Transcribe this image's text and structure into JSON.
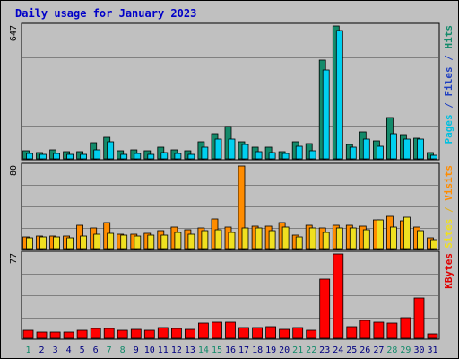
{
  "chart_data": {
    "type": "bar",
    "title": "Daily usage for January 2023",
    "categories": [
      "1",
      "2",
      "3",
      "4",
      "5",
      "6",
      "7",
      "8",
      "9",
      "10",
      "11",
      "12",
      "13",
      "14",
      "15",
      "16",
      "17",
      "18",
      "19",
      "20",
      "21",
      "22",
      "23",
      "24",
      "25",
      "26",
      "27",
      "28",
      "29",
      "30",
      "31"
    ],
    "weekend_days": [
      "1",
      "7",
      "8",
      "14",
      "15",
      "21",
      "22",
      "28",
      "29"
    ],
    "panels": [
      {
        "id": "hits",
        "max_label": "647",
        "ylim": [
          0,
          647
        ],
        "side_label": [
          {
            "text": "Pages",
            "color": "#00c0e0"
          },
          {
            "text": " / ",
            "color": "#2040c0"
          },
          {
            "text": "Files",
            "color": "#2040c0"
          },
          {
            "text": " / ",
            "color": "#2040c0"
          },
          {
            "text": "Hits",
            "color": "#138a6a"
          }
        ],
        "series": [
          {
            "name": "Hits",
            "color": "#138a6a",
            "values": [
              38,
              32,
              45,
              37,
              37,
              77,
              104,
              38,
              45,
              40,
              55,
              45,
              40,
              85,
              121,
              158,
              82,
              58,
              55,
              37,
              85,
              73,
              479,
              647,
              68,
              133,
              89,
              202,
              118,
              102,
              31
            ]
          },
          {
            "name": "Files",
            "color": "#00d0f0",
            "values": [
              25,
              22,
              28,
              22,
              22,
              45,
              85,
              22,
              28,
              22,
              30,
              28,
              22,
              55,
              95,
              95,
              68,
              37,
              30,
              28,
              63,
              40,
              433,
              625,
              55,
              95,
              63,
              121,
              95,
              95,
              18
            ]
          }
        ]
      },
      {
        "id": "visits",
        "max_label": "80",
        "ylim": [
          0,
          80
        ],
        "side_label": [
          {
            "text": "Sites",
            "color": "#f0e020"
          },
          {
            "text": " / ",
            "color": "#e0b020"
          },
          {
            "text": "Visits",
            "color": "#ff8c00"
          }
        ],
        "series": [
          {
            "name": "Visits",
            "color": "#ff8c00",
            "values": [
              11,
              12,
              12,
              12,
              23,
              20,
              25,
              14,
              14,
              15,
              17,
              21,
              18,
              20,
              29,
              21,
              80,
              22,
              22,
              25,
              13,
              23,
              20,
              23,
              23,
              22,
              28,
              31,
              27,
              21,
              10
            ]
          },
          {
            "name": "Sites",
            "color": "#f0e020",
            "values": [
              10,
              11,
              11,
              10,
              12,
              14,
              15,
              13,
              12,
              13,
              13,
              16,
              14,
              17,
              18,
              16,
              20,
              20,
              17,
              21,
              11,
              20,
              16,
              20,
              20,
              18,
              28,
              21,
              30,
              17,
              9
            ]
          }
        ]
      },
      {
        "id": "kbytes",
        "max_label": "77",
        "ylim": [
          0,
          77
        ],
        "side_label": [
          {
            "text": "KBytes",
            "color": "#e00000"
          }
        ],
        "series": [
          {
            "name": "KBytes",
            "color": "#ff0000",
            "values": [
              7,
              6,
              6,
              6,
              7,
              9,
              9,
              7,
              8,
              7,
              10,
              9,
              8,
              14,
              15,
              15,
              10,
              10,
              11,
              8,
              10,
              7,
              54,
              77,
              11,
              16,
              15,
              14,
              19,
              37,
              4
            ]
          }
        ]
      }
    ],
    "grid": true
  },
  "colors": {
    "background": "#c0c0c0",
    "plot_background": "#c0c0c0",
    "grid": "#808080",
    "title": "#0000c8",
    "weekday_label": "#000080",
    "weekend_label": "#138a6a"
  }
}
